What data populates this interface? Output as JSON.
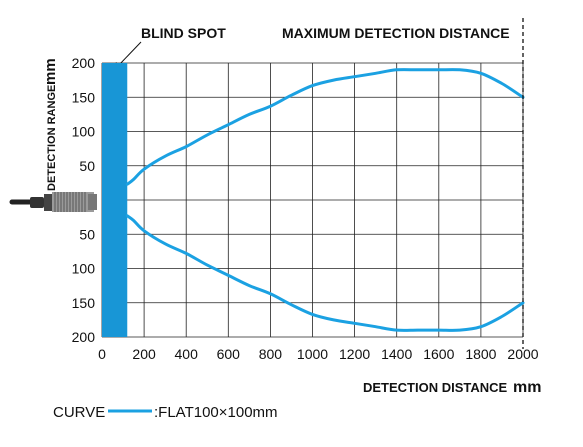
{
  "chart_data": {
    "type": "line",
    "annotations": {
      "blind_spot": "BLIND SPOT",
      "max_distance": "MAXIMUM DETECTION DISTANCE"
    },
    "xlabel": "DETECTION DISTANCE",
    "xunit": "mm",
    "ylabel": "DETECTION RANGE",
    "yunit": "mm",
    "x_ticks": [
      0,
      200,
      400,
      600,
      800,
      1000,
      1200,
      1400,
      1600,
      1800,
      2000
    ],
    "y_ticks": [
      200,
      150,
      100,
      50,
      0,
      50,
      100,
      150,
      200
    ],
    "xlim": [
      0,
      2000
    ],
    "ylim": [
      -200,
      200
    ],
    "grid": true,
    "blind_spot_range": [
      0,
      120
    ],
    "max_distance": 2000,
    "legend": {
      "label": "CURVE",
      "entry": ":FLAT100×100mm",
      "color": "#1ba1e2"
    },
    "series": [
      {
        "color": "#1ba1e2",
        "x": [
          120,
          150,
          200,
          300,
          400,
          500,
          600,
          700,
          800,
          900,
          1000,
          1100,
          1200,
          1300,
          1400,
          1500,
          1600,
          1700,
          1800,
          1900,
          2000
        ],
        "y": [
          23,
          30,
          45,
          64,
          78,
          95,
          110,
          125,
          137,
          153,
          167,
          175,
          180,
          185,
          190,
          190,
          190,
          190,
          185,
          170,
          150
        ]
      },
      {
        "color": "#1ba1e2",
        "x": [
          120,
          150,
          200,
          300,
          400,
          500,
          600,
          700,
          800,
          900,
          1000,
          1100,
          1200,
          1300,
          1400,
          1500,
          1600,
          1700,
          1800,
          1900,
          2000
        ],
        "y": [
          -23,
          -30,
          -45,
          -64,
          -78,
          -95,
          -110,
          -125,
          -137,
          -153,
          -167,
          -175,
          -180,
          -185,
          -190,
          -190,
          -190,
          -190,
          -185,
          -170,
          -150
        ]
      }
    ]
  }
}
